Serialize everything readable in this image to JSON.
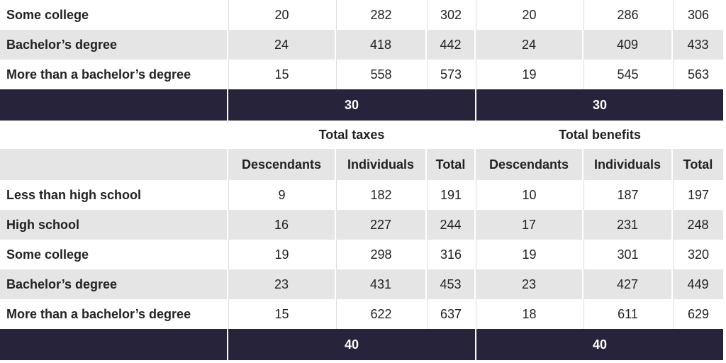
{
  "sections": [
    {
      "rows": [
        {
          "label": "Some college",
          "values": [
            20,
            282,
            302,
            20,
            286,
            306
          ]
        },
        {
          "label": "Bachelor’s degree",
          "values": [
            24,
            418,
            442,
            24,
            409,
            433
          ]
        },
        {
          "label": "More than a bachelor’s degree",
          "values": [
            15,
            558,
            573,
            19,
            545,
            563
          ]
        }
      ],
      "footer": [
        30,
        30
      ]
    },
    {
      "group_headers": [
        "Total taxes",
        "Total benefits"
      ],
      "column_headers": [
        "Descendants",
        "Individuals",
        "Total",
        "Descendants",
        "Individuals",
        "Total"
      ],
      "rows": [
        {
          "label": "Less than high school",
          "values": [
            9,
            182,
            191,
            10,
            187,
            197
          ]
        },
        {
          "label": "High school",
          "values": [
            16,
            227,
            244,
            17,
            231,
            248
          ]
        },
        {
          "label": "Some college",
          "values": [
            19,
            298,
            316,
            19,
            301,
            320
          ]
        },
        {
          "label": "Bachelor’s degree",
          "values": [
            23,
            431,
            453,
            23,
            427,
            449
          ]
        },
        {
          "label": "More than a bachelor’s degree",
          "values": [
            15,
            622,
            637,
            18,
            611,
            629
          ]
        }
      ],
      "footer": [
        40,
        40
      ]
    }
  ]
}
